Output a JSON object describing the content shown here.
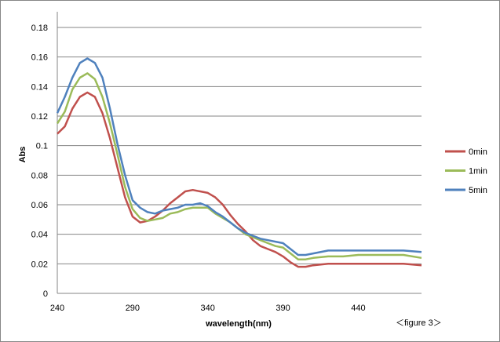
{
  "chart_data": {
    "type": "line",
    "title": "",
    "xlabel": "wavelength(nm)",
    "ylabel": "Abs",
    "annotation": "＜figure 3＞",
    "xlim": [
      240,
      482
    ],
    "ylim": [
      0,
      0.18
    ],
    "x_ticks": [
      "240",
      "290",
      "340",
      "390",
      "440"
    ],
    "x_tick_values": [
      240,
      290,
      340,
      390,
      440
    ],
    "y_ticks": [
      "0",
      "0.02",
      "0.04",
      "0.06",
      "0.08",
      "0.1",
      "0.12",
      "0.14",
      "0.16",
      "0.18"
    ],
    "y_tick_values": [
      0,
      0.02,
      0.04,
      0.06,
      0.08,
      0.1,
      0.12,
      0.14,
      0.16,
      0.18
    ],
    "grid": "horizontal",
    "legend_position": "right",
    "x": [
      240,
      245,
      250,
      255,
      260,
      265,
      270,
      275,
      280,
      285,
      290,
      295,
      300,
      305,
      310,
      315,
      320,
      325,
      330,
      335,
      340,
      345,
      350,
      355,
      360,
      365,
      370,
      375,
      380,
      385,
      390,
      395,
      400,
      405,
      410,
      420,
      430,
      440,
      450,
      460,
      470,
      482
    ],
    "series": [
      {
        "name": "0min",
        "color": "#C0504D",
        "values": [
          0.108,
          0.113,
          0.125,
          0.133,
          0.136,
          0.133,
          0.122,
          0.105,
          0.085,
          0.065,
          0.052,
          0.048,
          0.049,
          0.052,
          0.056,
          0.061,
          0.065,
          0.069,
          0.07,
          0.069,
          0.068,
          0.065,
          0.06,
          0.053,
          0.047,
          0.042,
          0.036,
          0.032,
          0.03,
          0.028,
          0.025,
          0.021,
          0.018,
          0.018,
          0.019,
          0.02,
          0.02,
          0.02,
          0.02,
          0.02,
          0.02,
          0.019
        ]
      },
      {
        "name": "1min",
        "color": "#9BBB59",
        "values": [
          0.115,
          0.123,
          0.138,
          0.146,
          0.149,
          0.145,
          0.133,
          0.115,
          0.094,
          0.072,
          0.057,
          0.051,
          0.049,
          0.05,
          0.051,
          0.054,
          0.055,
          0.057,
          0.058,
          0.058,
          0.058,
          0.054,
          0.051,
          0.048,
          0.044,
          0.04,
          0.038,
          0.036,
          0.034,
          0.032,
          0.031,
          0.027,
          0.023,
          0.023,
          0.024,
          0.025,
          0.025,
          0.026,
          0.026,
          0.026,
          0.026,
          0.024
        ]
      },
      {
        "name": "5min",
        "color": "#4F81BD",
        "values": [
          0.122,
          0.133,
          0.146,
          0.156,
          0.159,
          0.156,
          0.146,
          0.125,
          0.101,
          0.08,
          0.063,
          0.058,
          0.055,
          0.054,
          0.056,
          0.057,
          0.058,
          0.06,
          0.06,
          0.061,
          0.059,
          0.055,
          0.052,
          0.048,
          0.044,
          0.041,
          0.039,
          0.037,
          0.036,
          0.035,
          0.034,
          0.03,
          0.026,
          0.026,
          0.027,
          0.029,
          0.029,
          0.029,
          0.029,
          0.029,
          0.029,
          0.028
        ]
      }
    ]
  }
}
